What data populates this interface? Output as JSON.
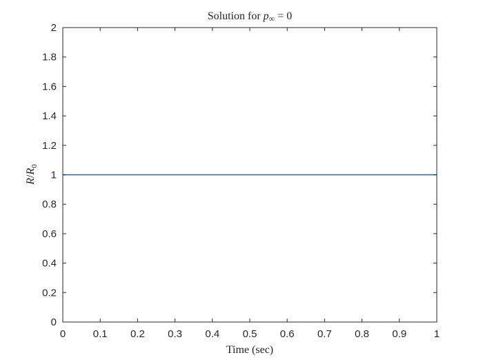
{
  "chart_data": {
    "type": "line",
    "title": {
      "prefix": "Solution for ",
      "var": "p",
      "subscript": "∞",
      "suffix": " = 0"
    },
    "xlabel": "Time (sec)",
    "ylabel": {
      "numerator": "R",
      "denominator": "R",
      "denominator_subscript": "0"
    },
    "xlim": [
      0,
      1
    ],
    "ylim": [
      0,
      2
    ],
    "xticks": [
      0,
      0.1,
      0.2,
      0.3,
      0.4,
      0.5,
      0.6,
      0.7,
      0.8,
      0.9,
      1
    ],
    "xtick_labels": [
      "0",
      "0.1",
      "0.2",
      "0.3",
      "0.4",
      "0.5",
      "0.6",
      "0.7",
      "0.8",
      "0.9",
      "1"
    ],
    "yticks": [
      0,
      0.2,
      0.4,
      0.6,
      0.8,
      1,
      1.2,
      1.4,
      1.6,
      1.8,
      2
    ],
    "ytick_labels": [
      "0",
      "0.2",
      "0.4",
      "0.6",
      "0.8",
      "1",
      "1.2",
      "1.4",
      "1.6",
      "1.8",
      "2"
    ],
    "grid": false,
    "series": [
      {
        "color": "#0072BD",
        "x": [
          0,
          1
        ],
        "y": [
          1,
          1
        ]
      }
    ]
  }
}
